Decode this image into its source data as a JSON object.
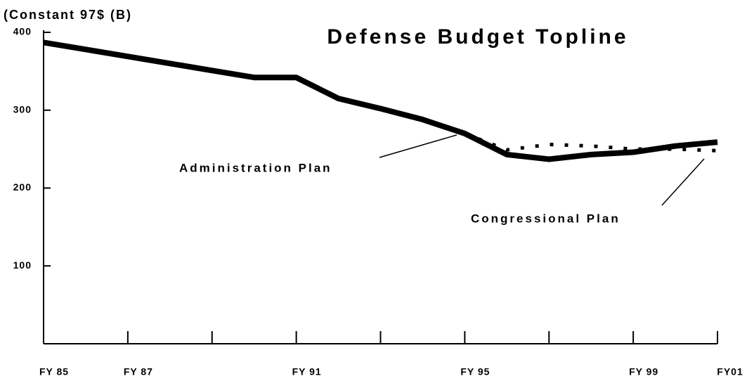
{
  "chart_data": {
    "type": "line",
    "title": "Defense Budget Topline",
    "y_label": "(Constant 97$ (B)",
    "categories": [
      "FY 85",
      null,
      "FY 87",
      null,
      null,
      null,
      "FY 91",
      null,
      null,
      null,
      "FY 95",
      null,
      null,
      null,
      "FY 99",
      null,
      "FY01"
    ],
    "series": [
      {
        "name": "Administration Plan",
        "color": "#000000",
        "style": "solid",
        "values": [
          387,
          378,
          369,
          360,
          351,
          342,
          342,
          315,
          302,
          288,
          270,
          243,
          237,
          243,
          246,
          254,
          259
        ]
      },
      {
        "name": "Congressional Plan",
        "color": "#000000",
        "style": "dotted",
        "values": [
          null,
          null,
          null,
          null,
          null,
          null,
          null,
          null,
          null,
          null,
          270,
          249,
          256,
          254,
          250,
          250,
          248
        ]
      }
    ],
    "ylim": [
      0,
      400
    ],
    "yticks": [
      100,
      200,
      300,
      400
    ]
  }
}
